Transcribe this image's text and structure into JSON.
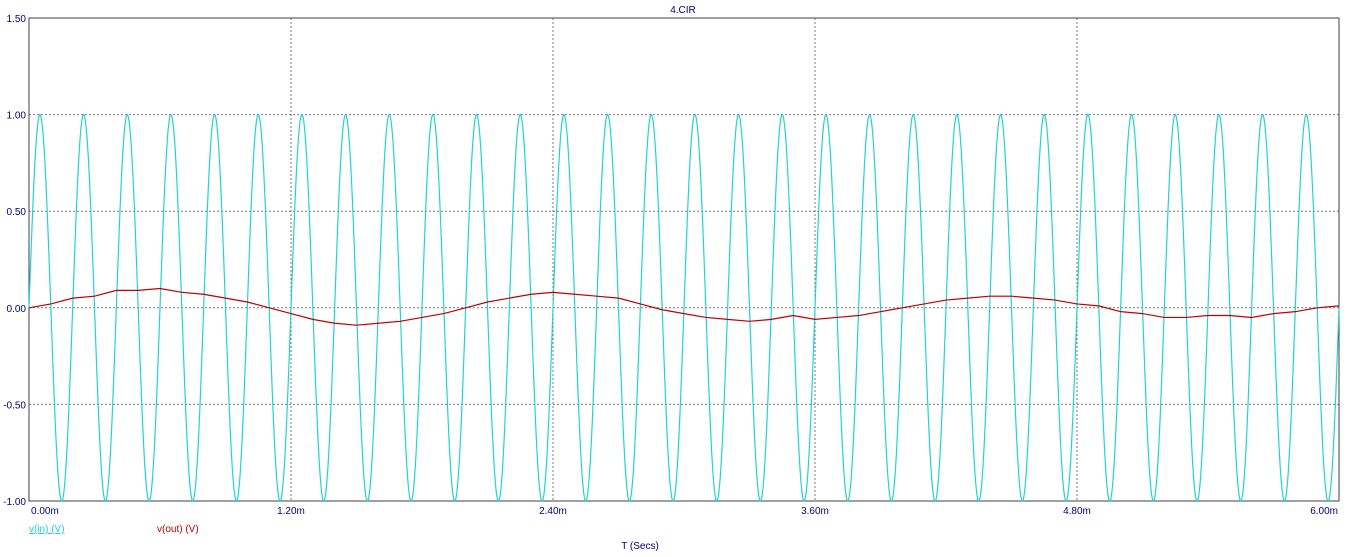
{
  "window": {
    "title": "4.CIR"
  },
  "chart_data": {
    "type": "line",
    "title": "4.CIR",
    "xlabel": "T (Secs)",
    "ylabel": "",
    "xlim": [
      0,
      0.006
    ],
    "ylim": [
      -1.0,
      1.5
    ],
    "grid": true,
    "x_ticks": [
      0,
      0.0012,
      0.0024,
      0.0036,
      0.0048,
      0.006
    ],
    "x_tick_labels": [
      "0.00m",
      "1.20m",
      "2.40m",
      "3.60m",
      "4.80m",
      "6.00m"
    ],
    "y_ticks": [
      1.5,
      1.0,
      0.5,
      0.0,
      -0.5,
      -1.0
    ],
    "y_tick_labels": [
      "1.50",
      "1.00",
      "0.50",
      "0.00",
      "-0.50",
      "-1.00"
    ],
    "legend_placement": "bottom-left",
    "series": [
      {
        "name": "v(in) (V)",
        "color": "#22d3d3",
        "function": "sine",
        "amplitude": 1.0,
        "frequency_hz": 5000,
        "offset": 0.0
      },
      {
        "name": "v(out) (V)",
        "color": "#c00000",
        "x": [
          0,
          0.0001,
          0.0002,
          0.0003,
          0.0004,
          0.0005,
          0.0006,
          0.0007,
          0.0008,
          0.0009,
          0.001,
          0.0011,
          0.0012,
          0.0013,
          0.0014,
          0.0015,
          0.0016,
          0.0017,
          0.0018,
          0.0019,
          0.002,
          0.0021,
          0.0022,
          0.0023,
          0.0024,
          0.0025,
          0.0026,
          0.0027,
          0.0028,
          0.0029,
          0.003,
          0.0031,
          0.0032,
          0.0033,
          0.0034,
          0.0035,
          0.0036,
          0.0037,
          0.0038,
          0.0039,
          0.004,
          0.0041,
          0.0042,
          0.0043,
          0.0044,
          0.0045,
          0.0046,
          0.0047,
          0.0048,
          0.0049,
          0.005,
          0.0051,
          0.0052,
          0.0053,
          0.0054,
          0.0055,
          0.0056,
          0.0057,
          0.0058,
          0.0059,
          0.006
        ],
        "y": [
          0.0,
          0.02,
          0.05,
          0.06,
          0.09,
          0.09,
          0.1,
          0.08,
          0.07,
          0.05,
          0.03,
          0.0,
          -0.03,
          -0.06,
          -0.08,
          -0.09,
          -0.08,
          -0.07,
          -0.05,
          -0.03,
          0.0,
          0.03,
          0.05,
          0.07,
          0.08,
          0.07,
          0.06,
          0.05,
          0.02,
          -0.01,
          -0.03,
          -0.05,
          -0.06,
          -0.07,
          -0.06,
          -0.04,
          -0.06,
          -0.05,
          -0.04,
          -0.02,
          0.0,
          0.02,
          0.04,
          0.05,
          0.06,
          0.06,
          0.05,
          0.04,
          0.02,
          0.01,
          -0.02,
          -0.03,
          -0.05,
          -0.05,
          -0.04,
          -0.04,
          -0.05,
          -0.03,
          -0.02,
          0.0,
          0.01
        ]
      }
    ]
  }
}
